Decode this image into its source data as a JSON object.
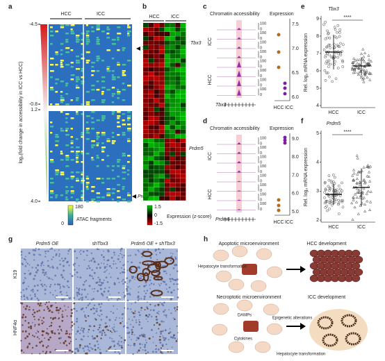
{
  "a": {
    "letter": "a",
    "columns": [
      "HCC",
      "ICC"
    ],
    "axis_label": "log₂(fold change in accessibility in ICC vs HCC)",
    "ticks": [
      "-4.5",
      "-0.8",
      "1.2",
      "4.0"
    ],
    "genes": [
      "Tbx3",
      "Prdm5"
    ],
    "colorbar": {
      "max": "180",
      "min": "0",
      "label": "ATAC fragments"
    }
  },
  "b": {
    "letter": "b",
    "columns": [
      "HCC",
      "ICC"
    ],
    "genes": [
      "Tbx3",
      "Prdm5"
    ],
    "colorbar": {
      "max": "1.5",
      "mid": "0",
      "min": "-1.5",
      "label": "Expression (z-score)"
    }
  },
  "c": {
    "letter": "c",
    "titles": [
      "Chromatin accessibility",
      "Expression"
    ],
    "groups": [
      "ICC",
      "HCC"
    ],
    "gene": "Tbx3",
    "track_ticks": [
      "0",
      "100"
    ],
    "expr_ticks": [
      "7.5",
      "7.0",
      "6.5",
      "6.0"
    ],
    "x_labels": [
      "HCC",
      "ICC"
    ]
  },
  "d": {
    "letter": "d",
    "titles": [
      "Chromatin accessibility",
      "Expression"
    ],
    "groups": [
      "ICC",
      "HCC"
    ],
    "gene": "Prdm5",
    "track_ticks": [
      "0",
      "100"
    ],
    "expr_ticks": [
      "9.0",
      "8.0",
      "7.0",
      "6.0",
      "5.0"
    ],
    "x_labels": [
      "HCC",
      "ICC"
    ]
  },
  "e": {
    "letter": "e",
    "gene": "Tbx3",
    "y_label": "Rel. log₂ mRNA expression",
    "yticks": [
      "9",
      "8",
      "7",
      "6",
      "5",
      "4"
    ],
    "significance": "****",
    "x_labels": [
      "HCC",
      "ICC"
    ]
  },
  "f": {
    "letter": "f",
    "gene": "Prdm5",
    "y_label": "Rel. log₂ mRNA expression",
    "yticks": [
      "5",
      "4",
      "3",
      "2"
    ],
    "significance": "****",
    "x_labels": [
      "HCC",
      "ICC"
    ]
  },
  "g": {
    "letter": "g",
    "columns": [
      "Prdm5 OE",
      "shTbx3",
      "Prdm5 OE + shTbx3"
    ],
    "rows": [
      "K19",
      "HNF4α"
    ]
  },
  "h": {
    "letter": "h",
    "top": {
      "title": "Apoptotic microenvironment",
      "outcome": "HCC development",
      "label": "Hepatocyte transformation"
    },
    "bottom": {
      "title": "Necroptotic microenvironment",
      "outcome": "ICC development",
      "damps": "DAMPs",
      "epigenetic": "Epigenetic alterations",
      "cytokines": "Cytokines",
      "label": "Hepatocyte transformation"
    }
  }
}
